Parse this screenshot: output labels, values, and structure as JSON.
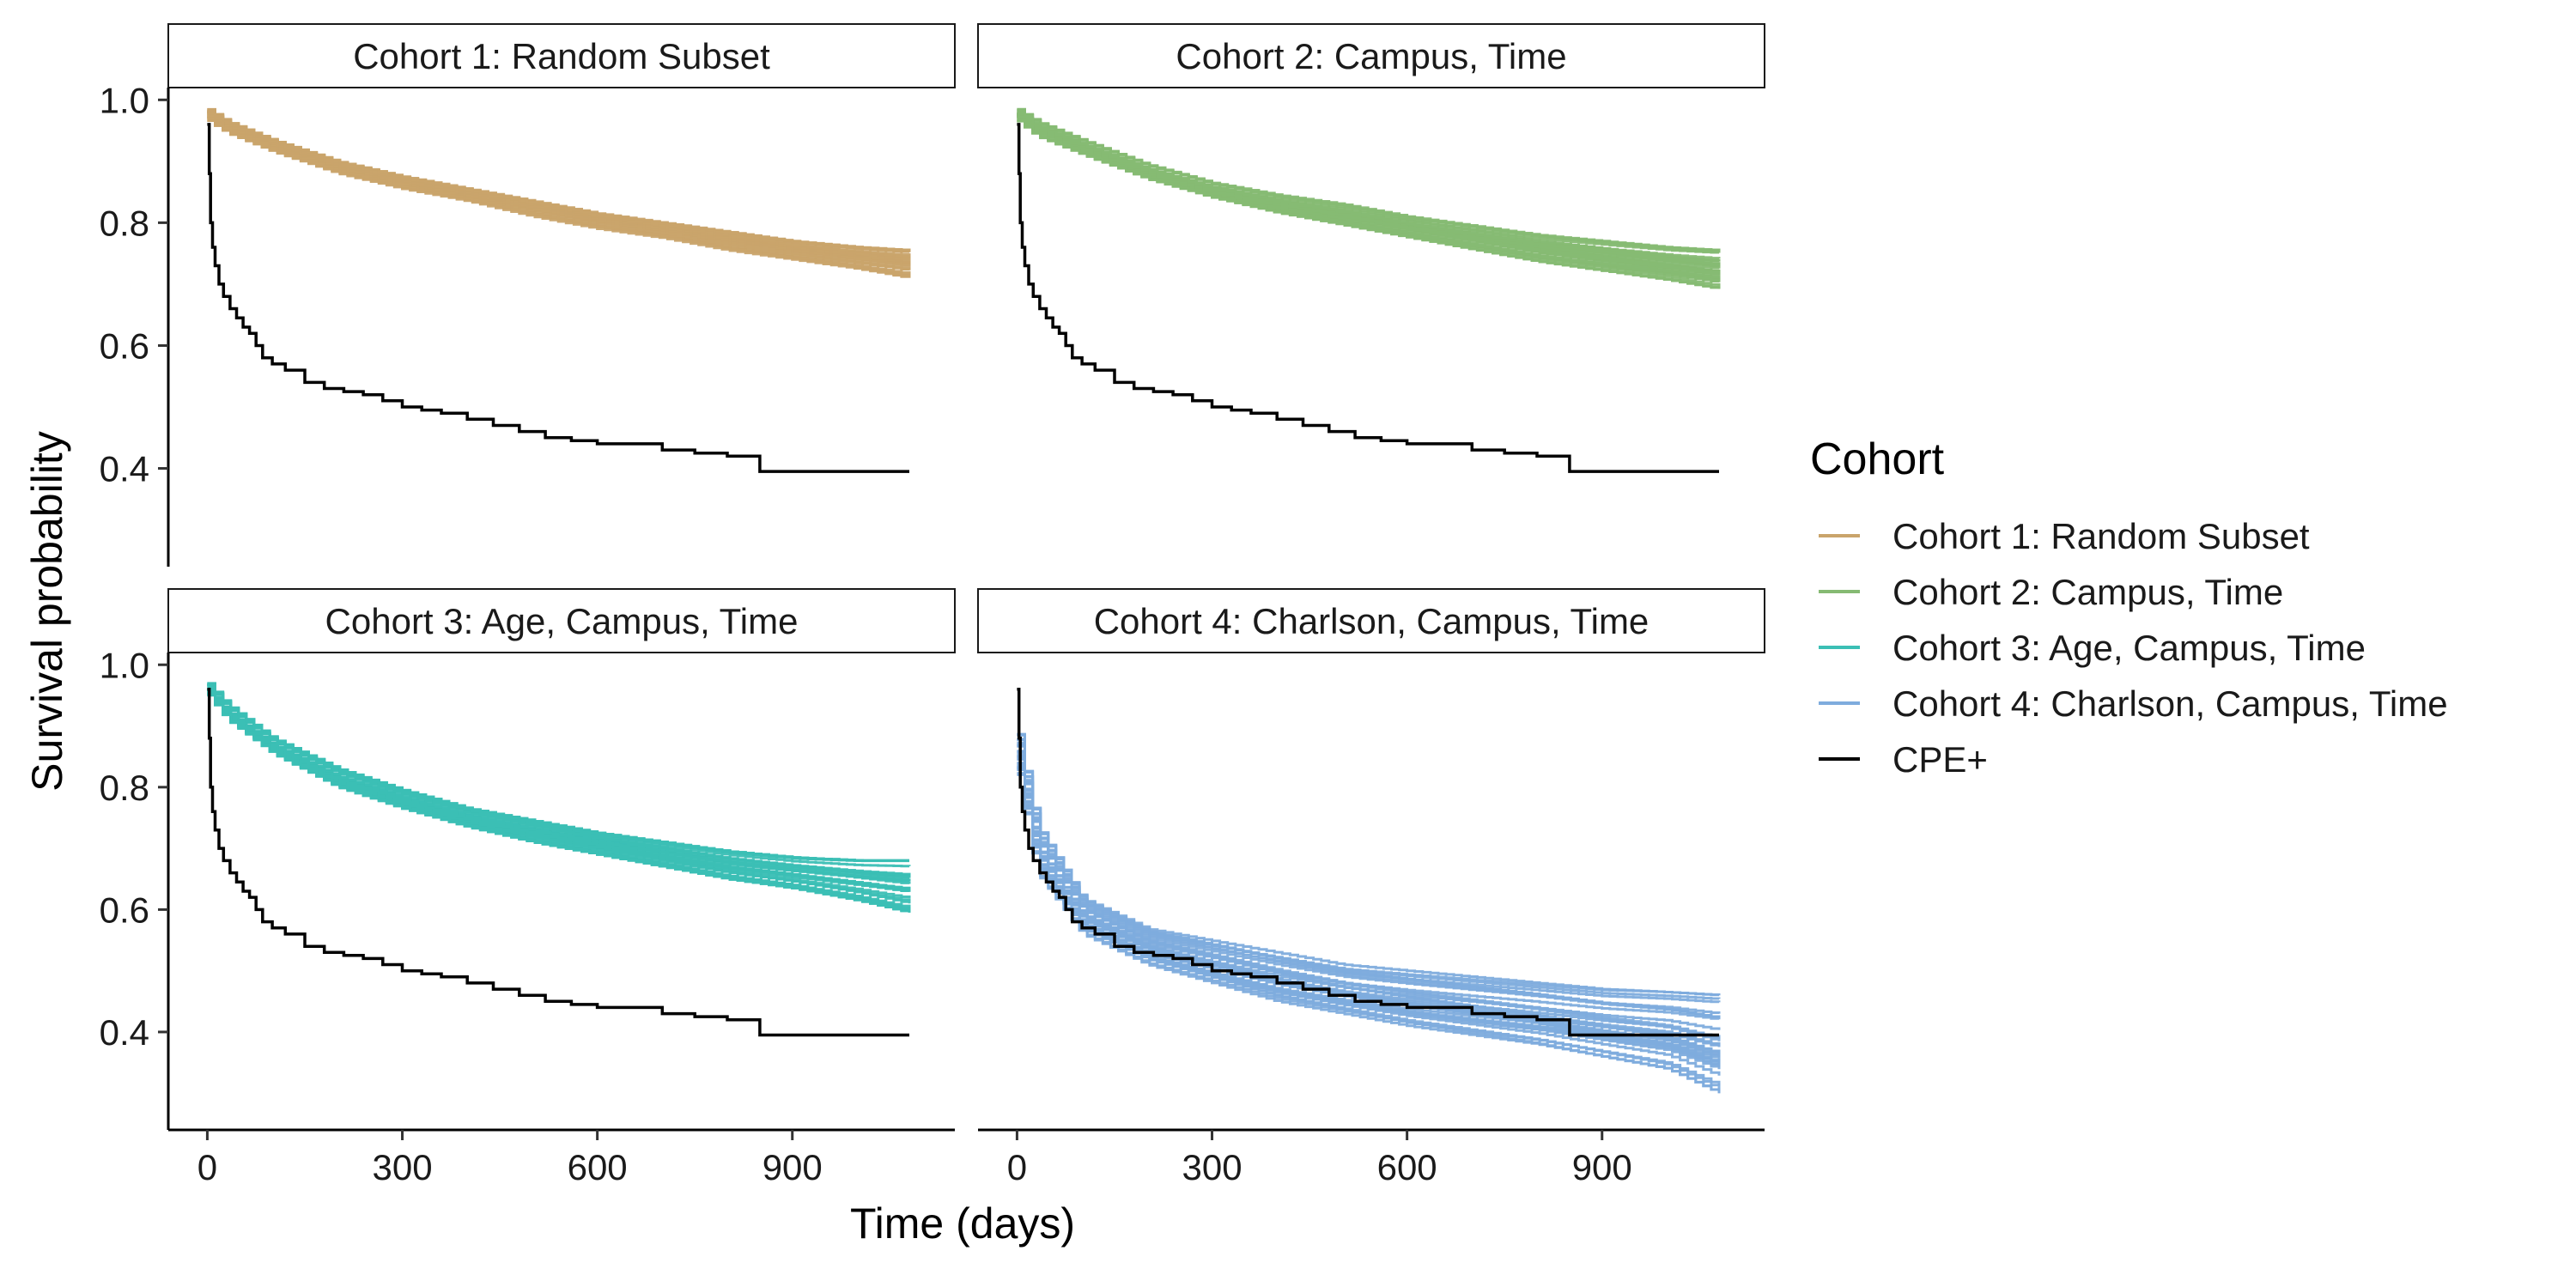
{
  "chart_data": {
    "type": "line",
    "layout": "facet-grid-2x2",
    "xlabel": "Time (days)",
    "ylabel": "Survival probability",
    "xlim": [
      -60,
      1150
    ],
    "ylim": [
      0.24,
      1.02
    ],
    "x_ticks": [
      0,
      300,
      600,
      900
    ],
    "y_ticks": [
      0.4,
      0.6,
      0.8,
      1.0
    ],
    "x_tick_labels": [
      "0",
      "300",
      "600",
      "900"
    ],
    "y_tick_labels": [
      "0.4",
      "0.6",
      "0.8",
      "1.0"
    ],
    "grid": false,
    "legend": {
      "title": "Cohort",
      "position": "right",
      "entries": [
        {
          "label": "Cohort 1: Random Subset",
          "color": "#C9A46B"
        },
        {
          "label": "Cohort 2: Campus, Time",
          "color": "#86BA73"
        },
        {
          "label": "Cohort 3: Age, Campus, Time",
          "color": "#3BBFB5"
        },
        {
          "label": "Cohort 4: Charlson, Campus, Time",
          "color": "#7EACDD"
        },
        {
          "label": "CPE+",
          "color": "#000000"
        }
      ]
    },
    "cpe_curve": {
      "name": "CPE+",
      "color": "#000000",
      "x": [
        0,
        3,
        5,
        8,
        12,
        18,
        25,
        35,
        45,
        55,
        65,
        75,
        85,
        100,
        120,
        150,
        180,
        210,
        240,
        270,
        300,
        330,
        360,
        400,
        440,
        480,
        520,
        560,
        600,
        650,
        700,
        750,
        800,
        840,
        850,
        900,
        950,
        1000,
        1080
      ],
      "y": [
        0.96,
        0.88,
        0.8,
        0.76,
        0.73,
        0.7,
        0.68,
        0.66,
        0.645,
        0.63,
        0.62,
        0.6,
        0.58,
        0.57,
        0.56,
        0.54,
        0.53,
        0.525,
        0.52,
        0.51,
        0.5,
        0.495,
        0.49,
        0.48,
        0.47,
        0.46,
        0.45,
        0.445,
        0.44,
        0.44,
        0.43,
        0.425,
        0.42,
        0.42,
        0.395,
        0.395,
        0.395,
        0.395,
        0.395
      ]
    },
    "facets": [
      {
        "title": "Cohort 1: Random Subset",
        "color": "#C9A46B",
        "band": {
          "x": [
            0,
            30,
            100,
            200,
            300,
            400,
            500,
            600,
            700,
            800,
            900,
            1000,
            1080
          ],
          "upper": [
            0.985,
            0.965,
            0.935,
            0.9,
            0.875,
            0.855,
            0.835,
            0.815,
            0.8,
            0.785,
            0.77,
            0.76,
            0.755
          ],
          "lower": [
            0.965,
            0.945,
            0.915,
            0.88,
            0.855,
            0.835,
            0.81,
            0.79,
            0.775,
            0.755,
            0.74,
            0.725,
            0.71
          ]
        }
      },
      {
        "title": "Cohort 2: Campus, Time",
        "color": "#86BA73",
        "band": {
          "x": [
            0,
            30,
            100,
            200,
            300,
            400,
            500,
            600,
            700,
            800,
            900,
            1000,
            1080
          ],
          "upper": [
            0.985,
            0.965,
            0.935,
            0.895,
            0.865,
            0.845,
            0.83,
            0.81,
            0.795,
            0.78,
            0.77,
            0.76,
            0.755
          ],
          "lower": [
            0.965,
            0.94,
            0.91,
            0.87,
            0.84,
            0.815,
            0.795,
            0.775,
            0.755,
            0.735,
            0.72,
            0.705,
            0.69
          ]
        }
      },
      {
        "title": "Cohort 3: Age, Campus, Time",
        "color": "#3BBFB5",
        "band": {
          "x": [
            0,
            30,
            100,
            200,
            300,
            400,
            500,
            600,
            700,
            800,
            900,
            1000,
            1080
          ],
          "upper": [
            0.97,
            0.935,
            0.88,
            0.83,
            0.795,
            0.765,
            0.745,
            0.725,
            0.71,
            0.695,
            0.685,
            0.68,
            0.68
          ],
          "lower": [
            0.95,
            0.91,
            0.855,
            0.8,
            0.765,
            0.735,
            0.71,
            0.69,
            0.67,
            0.65,
            0.635,
            0.615,
            0.595
          ]
        }
      },
      {
        "title": "Cohort 4: Charlson, Campus, Time",
        "color": "#7EACDD",
        "band": {
          "x": [
            0,
            30,
            100,
            200,
            300,
            400,
            500,
            600,
            700,
            800,
            900,
            1000,
            1080
          ],
          "upper": [
            0.89,
            0.74,
            0.62,
            0.57,
            0.55,
            0.53,
            0.51,
            0.5,
            0.49,
            0.48,
            0.47,
            0.465,
            0.46
          ],
          "lower": [
            0.82,
            0.66,
            0.56,
            0.51,
            0.48,
            0.45,
            0.43,
            0.41,
            0.395,
            0.38,
            0.36,
            0.34,
            0.3
          ]
        }
      }
    ]
  }
}
